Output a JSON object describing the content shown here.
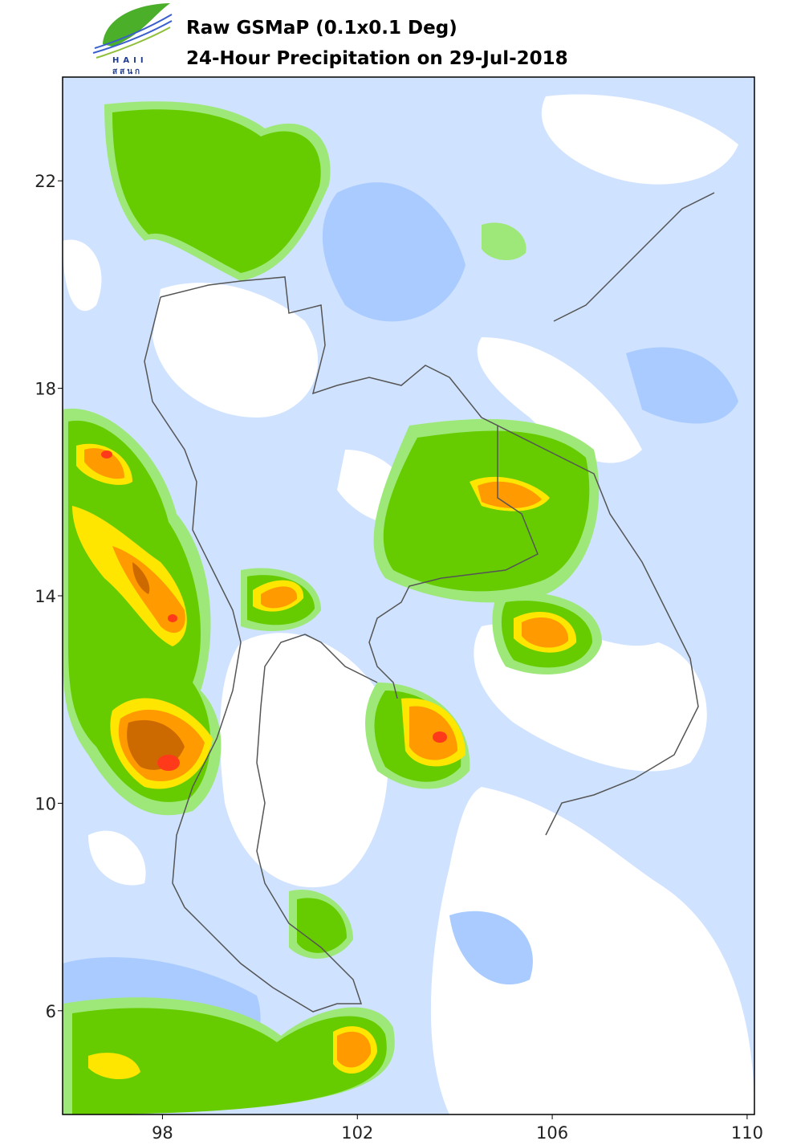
{
  "header": {
    "title": "Raw GSMaP (0.1x0.1 Deg)",
    "subtitle": "24-Hour Precipitation on 29-Jul-2018"
  },
  "logo": {
    "name": "HAII",
    "thai_name": "สสนก"
  },
  "map": {
    "xlim": [
      95.95,
      110.15
    ],
    "ylim": [
      4,
      24
    ],
    "xticks": [
      98,
      102,
      106,
      110
    ],
    "yticks": [
      22,
      18,
      14,
      10,
      6
    ]
  }
}
